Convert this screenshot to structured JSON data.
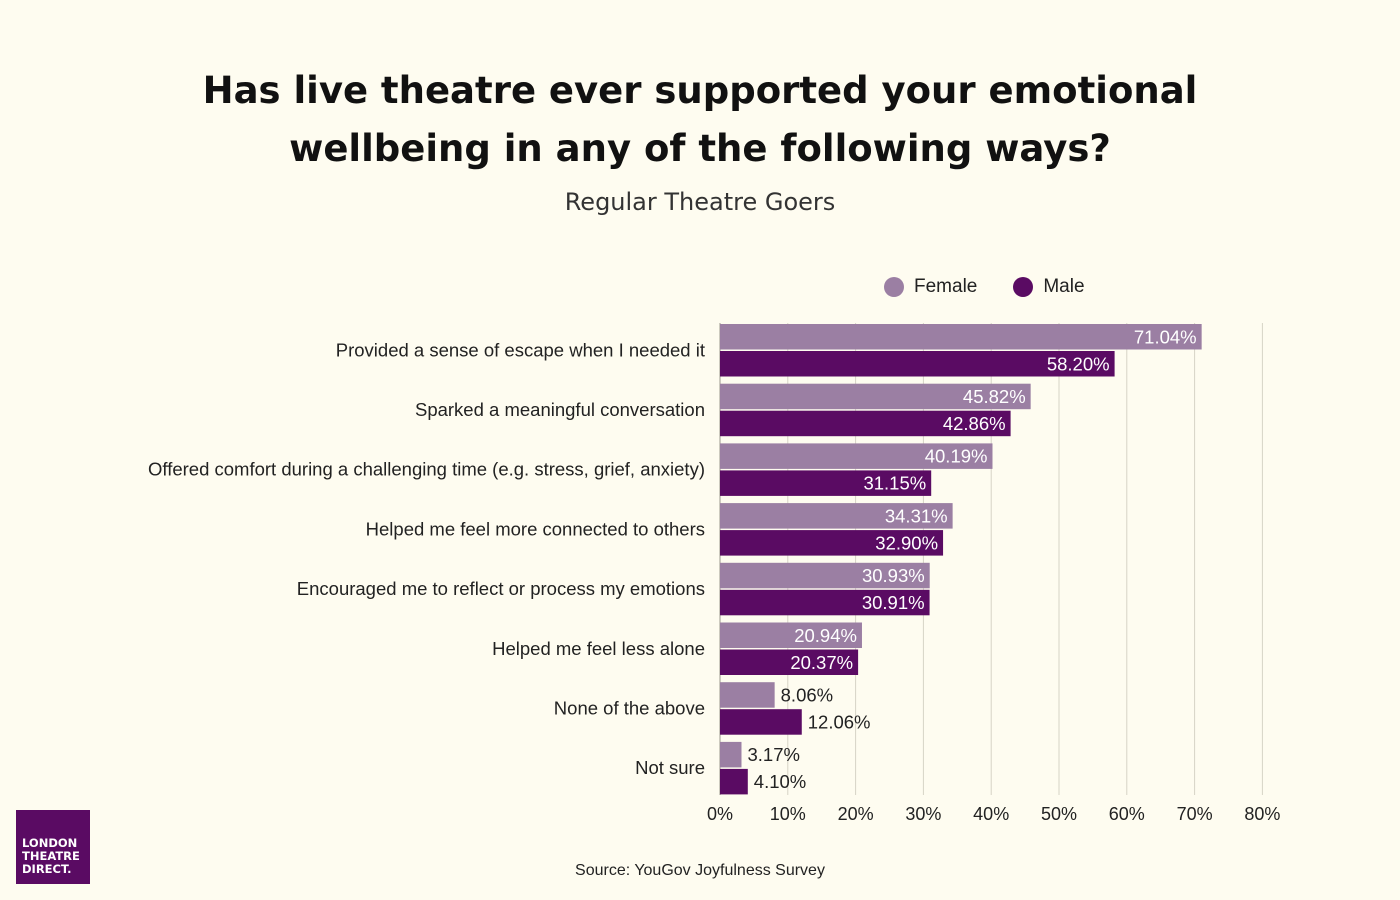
{
  "colors": {
    "female": "#9b7fa3",
    "male": "#5a0b63",
    "background": "#fefcf0",
    "grid": "#d6d3c6"
  },
  "chart_data": {
    "type": "bar",
    "orientation": "horizontal",
    "title": "Has live theatre ever supported your emotional wellbeing in any of the following ways?",
    "subtitle": "Regular Theatre Goers",
    "categories": [
      "Provided a sense of escape when I needed it",
      "Sparked a meaningful conversation",
      "Offered comfort during a challenging time (e.g. stress, grief, anxiety)",
      "Helped me feel more connected to others",
      "Encouraged me to reflect or process my emotions",
      "Helped me feel less alone",
      "None of the above",
      "Not sure"
    ],
    "series": [
      {
        "name": "Female",
        "values": [
          71.04,
          45.82,
          40.19,
          34.31,
          30.93,
          20.94,
          8.06,
          3.17
        ],
        "labels": [
          "71.04%",
          "45.82%",
          "40.19%",
          "34.31%",
          "30.93%",
          "20.94%",
          "8.06%",
          "3.17%"
        ]
      },
      {
        "name": "Male",
        "values": [
          58.2,
          42.86,
          31.15,
          32.9,
          30.91,
          20.37,
          12.06,
          4.1
        ],
        "labels": [
          "58.20%",
          "42.86%",
          "31.15%",
          "32.90%",
          "30.91%",
          "20.37%",
          "12.06%",
          "4.10%"
        ]
      }
    ],
    "xlim": [
      0,
      80
    ],
    "xticks": [
      "0%",
      "10%",
      "20%",
      "30%",
      "40%",
      "50%",
      "60%",
      "70%",
      "80%"
    ],
    "grid": true,
    "legend": "top"
  },
  "source": "Source: YouGov Joyfulness Survey",
  "logo": {
    "line1": "LONDON",
    "line2": "THEATRE",
    "line3": "DIRECT."
  }
}
